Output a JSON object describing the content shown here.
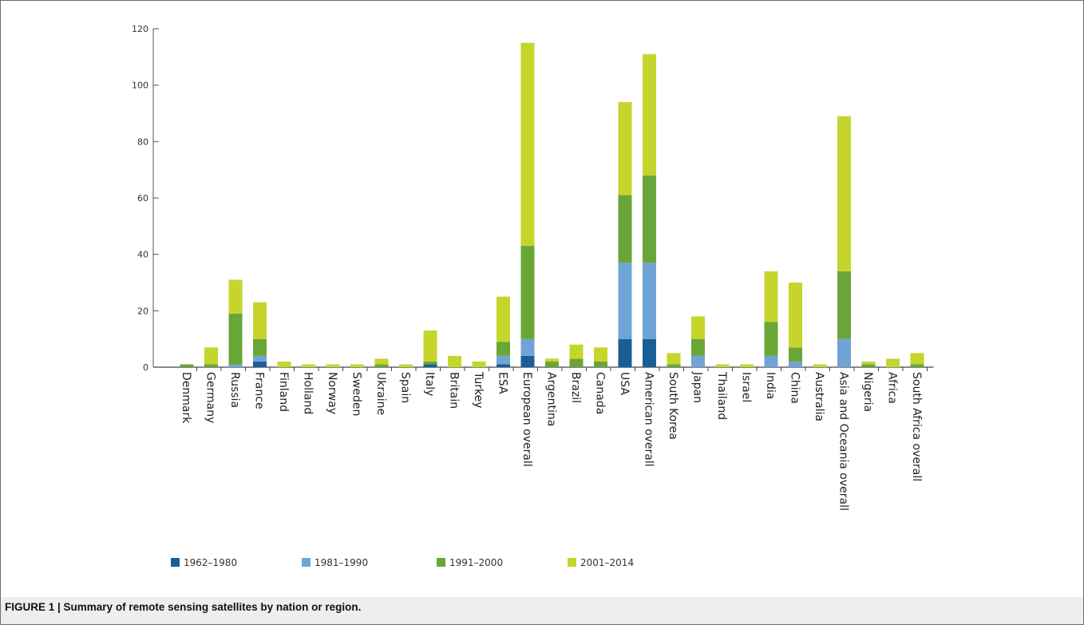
{
  "caption": "FIGURE 1 | Summary of remote sensing satellites by nation or region.",
  "colors": {
    "1962-1980": "#1a5e97",
    "1981-1990": "#6fa4d6",
    "1991-2000": "#6aa637",
    "2001-2014": "#c5d52c"
  },
  "chart_data": {
    "type": "bar",
    "stacked": true,
    "title": "",
    "xlabel": "",
    "ylabel": "",
    "ylim": [
      0,
      120
    ],
    "yticks": [
      0,
      20,
      40,
      60,
      80,
      100,
      120
    ],
    "grid": false,
    "legend_position": "bottom-left",
    "categories": [
      "Denmark",
      "Germany",
      "Russia",
      "France",
      "Finland",
      "Holland",
      "Norway",
      "Sweden",
      "Ukraine",
      "Spain",
      "Italy",
      "Britain",
      "Turkey",
      "ESA",
      "European overall",
      "Argentina",
      "Brazil",
      "Canada",
      "USA",
      "American overall",
      "South Korea",
      "Japan",
      "Thailand",
      "Israel",
      "India",
      "China",
      "Australia",
      "Asia and Oceania overall",
      "Nigeria",
      "Africa",
      "South Africa overall"
    ],
    "series": [
      {
        "name": "1962–1980",
        "values": [
          0,
          0,
          0,
          2,
          0,
          0,
          0,
          0,
          0,
          0,
          1,
          0,
          0,
          1,
          4,
          0,
          0,
          0,
          10,
          10,
          0,
          0,
          0,
          0,
          0,
          0,
          0,
          0,
          0,
          0,
          0
        ]
      },
      {
        "name": "1981–1990",
        "values": [
          0,
          0,
          1,
          2,
          0,
          0,
          0,
          0,
          0,
          0,
          0,
          0,
          0,
          3,
          6,
          0,
          0,
          0,
          27,
          27,
          0,
          4,
          0,
          0,
          4,
          2,
          0,
          10,
          0,
          0,
          0
        ]
      },
      {
        "name": "1991–2000",
        "values": [
          1,
          1,
          18,
          6,
          0,
          0,
          0,
          0,
          1,
          0,
          1,
          0,
          0,
          5,
          33,
          2,
          3,
          2,
          24,
          31,
          1,
          6,
          0,
          0,
          12,
          5,
          0,
          24,
          1,
          0,
          1
        ]
      },
      {
        "name": "2001–2014",
        "values": [
          0,
          6,
          12,
          13,
          2,
          1,
          1,
          1,
          2,
          1,
          11,
          4,
          2,
          16,
          72,
          1,
          5,
          5,
          33,
          43,
          4,
          8,
          1,
          1,
          18,
          23,
          1,
          55,
          1,
          3,
          4
        ]
      }
    ]
  }
}
